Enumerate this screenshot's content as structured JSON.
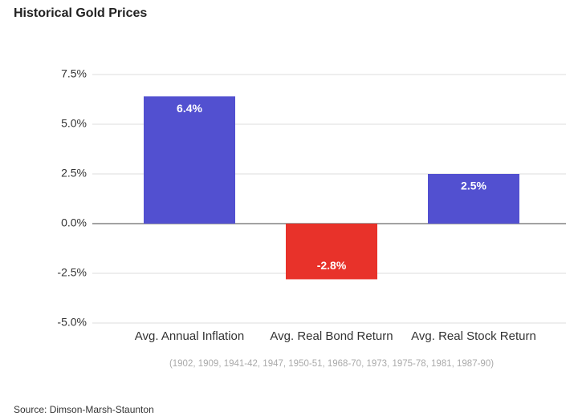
{
  "chart_data": {
    "type": "bar",
    "title": "Historical Gold Prices",
    "categories": [
      "Avg. Annual Inflation",
      "Avg. Real Bond Return",
      "Avg. Real Stock Return"
    ],
    "values": [
      6.4,
      -2.8,
      2.5
    ],
    "value_labels": [
      "6.4%",
      "-2.8%",
      "2.5%"
    ],
    "colors": [
      "#5250d0",
      "#e8322a",
      "#5250d0"
    ],
    "ylim": [
      -5,
      7.5
    ],
    "yticks": [
      {
        "value": -5,
        "label": "-5.0%"
      },
      {
        "value": -2.5,
        "label": "-2.5%"
      },
      {
        "value": 0,
        "label": "0.0%"
      },
      {
        "value": 2.5,
        "label": "2.5%"
      },
      {
        "value": 5,
        "label": "5.0%"
      },
      {
        "value": 7.5,
        "label": "7.5%"
      }
    ],
    "grid": true,
    "note": "(1902, 1909, 1941-42, 1947, 1950-51, 1968-70, 1973, 1975-78, 1981, 1987-90)",
    "source": "Source: Dimson-Marsh-Staunton"
  }
}
